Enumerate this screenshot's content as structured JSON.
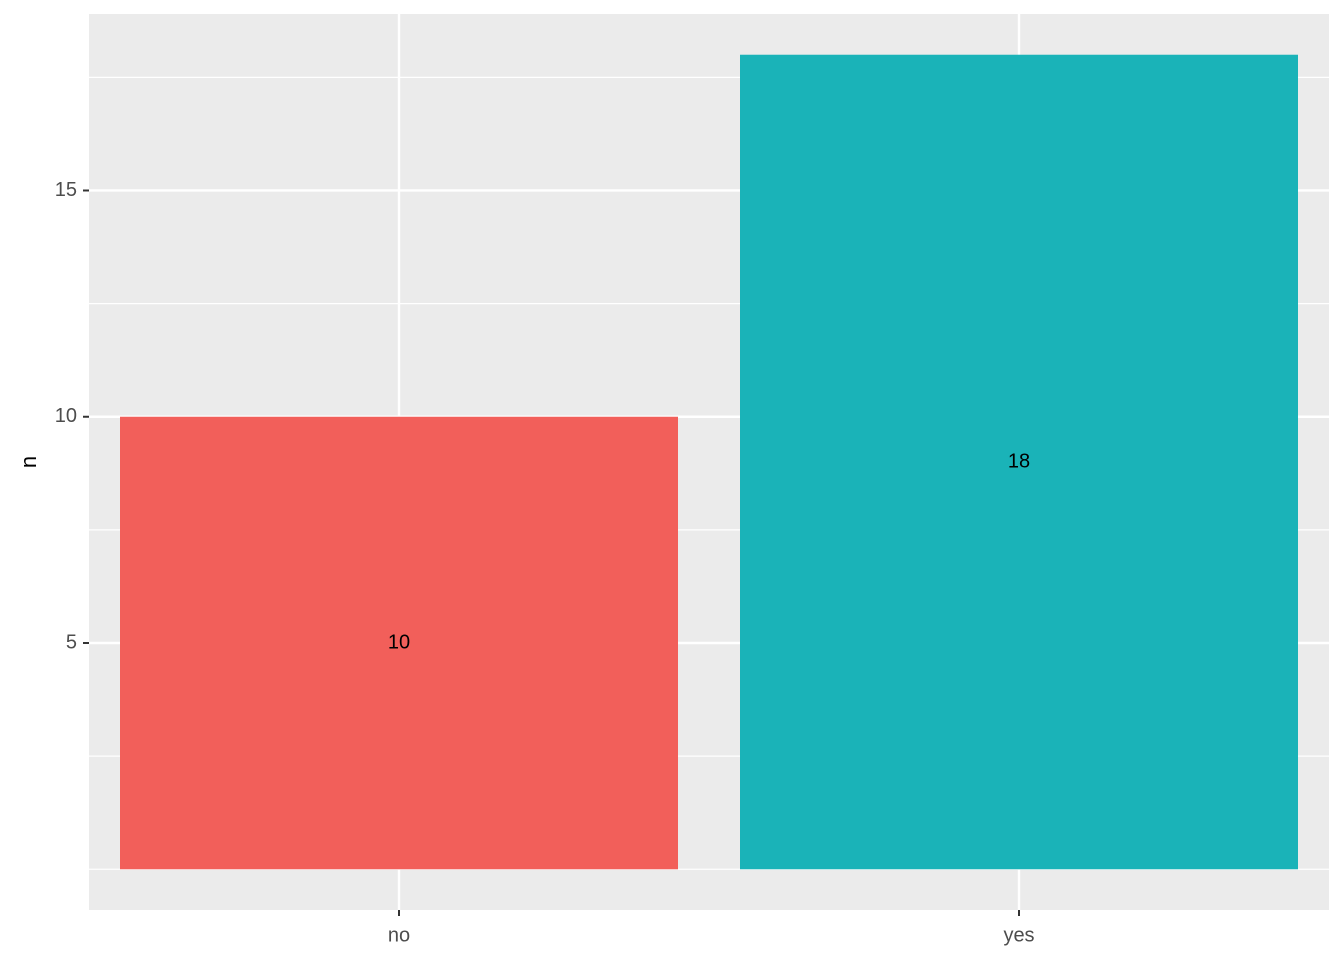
{
  "chart_data": {
    "type": "bar",
    "y_label": "n",
    "categories": [
      "no",
      "yes"
    ],
    "values": [
      10,
      18
    ],
    "colors": [
      "#f25f5a",
      "#1ab3b8"
    ],
    "ylim": [
      -0.9,
      18.9
    ],
    "yticks": [
      5,
      10,
      15
    ],
    "minor_yticks": [
      0,
      2.5,
      7.5,
      12.5,
      17.5
    ],
    "grid": true
  }
}
